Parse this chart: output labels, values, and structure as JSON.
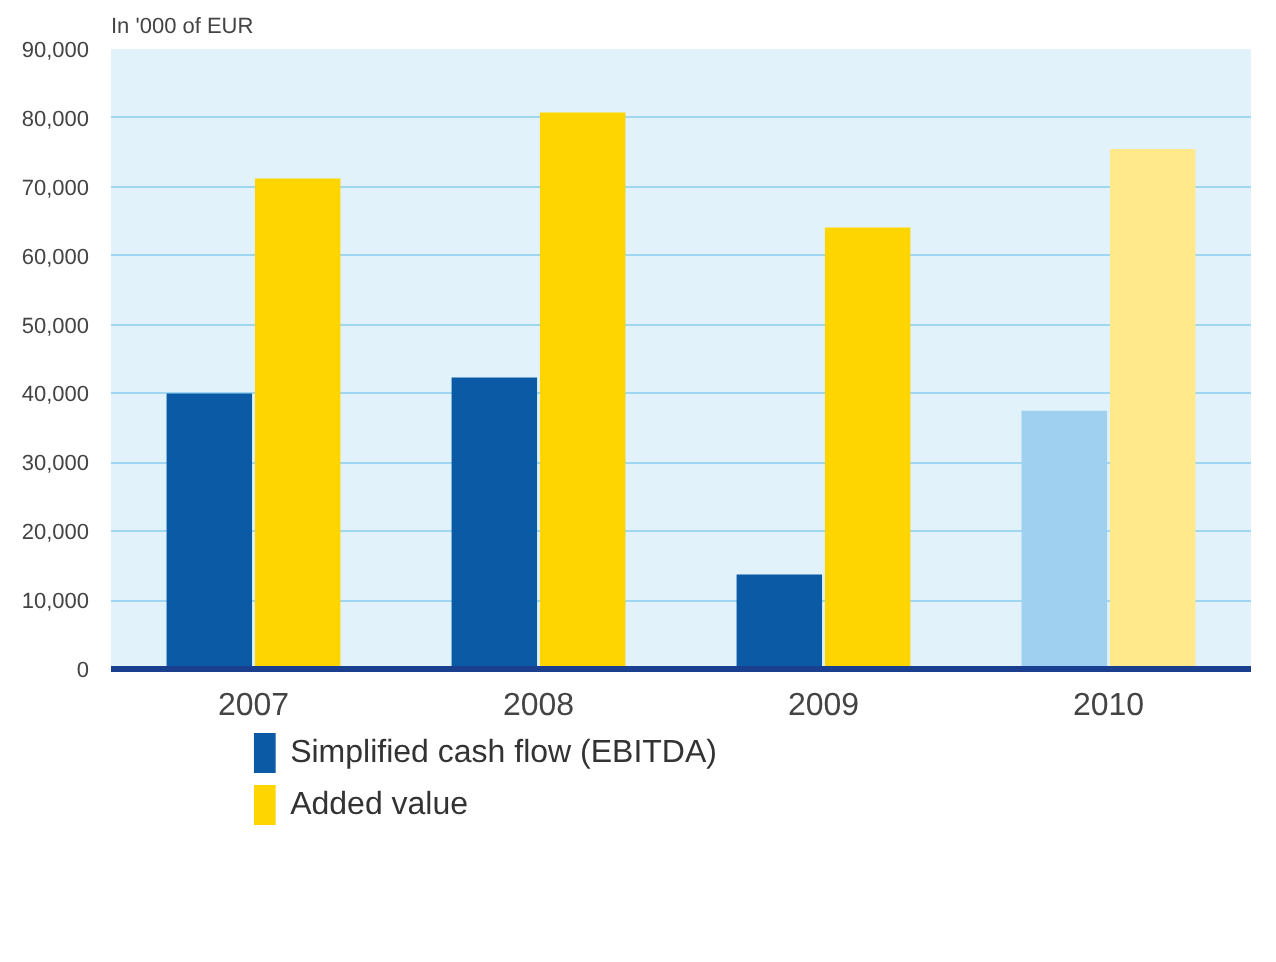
{
  "chart_data": {
    "type": "bar",
    "ylabel": "In '000 of EUR",
    "categories": [
      "2007",
      "2008",
      "2009",
      "2010"
    ],
    "series": [
      {
        "name": "Simplified cash flow (EBITDA)",
        "color": "#0b5aa6",
        "colors": [
          "#0b5aa6",
          "#0b5aa6",
          "#0b5aa6",
          "#9fd0f0"
        ],
        "values": [
          40000,
          42300,
          13700,
          37500
        ]
      },
      {
        "name": "Added value",
        "color": "#ffd500",
        "colors": [
          "#ffd500",
          "#ffd500",
          "#ffd500",
          "#ffe98a"
        ],
        "values": [
          71200,
          80800,
          64100,
          75500
        ]
      }
    ],
    "ylim": [
      0,
      90000
    ],
    "yticks": [
      {
        "value": 0,
        "label": "0"
      },
      {
        "value": 10000,
        "label": "10,000"
      },
      {
        "value": 20000,
        "label": "20,000"
      },
      {
        "value": 30000,
        "label": "30,000"
      },
      {
        "value": 40000,
        "label": "40,000"
      },
      {
        "value": 50000,
        "label": "50,000"
      },
      {
        "value": 60000,
        "label": "60,000"
      },
      {
        "value": 70000,
        "label": "70,000"
      },
      {
        "value": 80000,
        "label": "80,000"
      },
      {
        "value": 90000,
        "label": "90,000"
      }
    ],
    "grid": "y",
    "legend": "bottom left"
  }
}
